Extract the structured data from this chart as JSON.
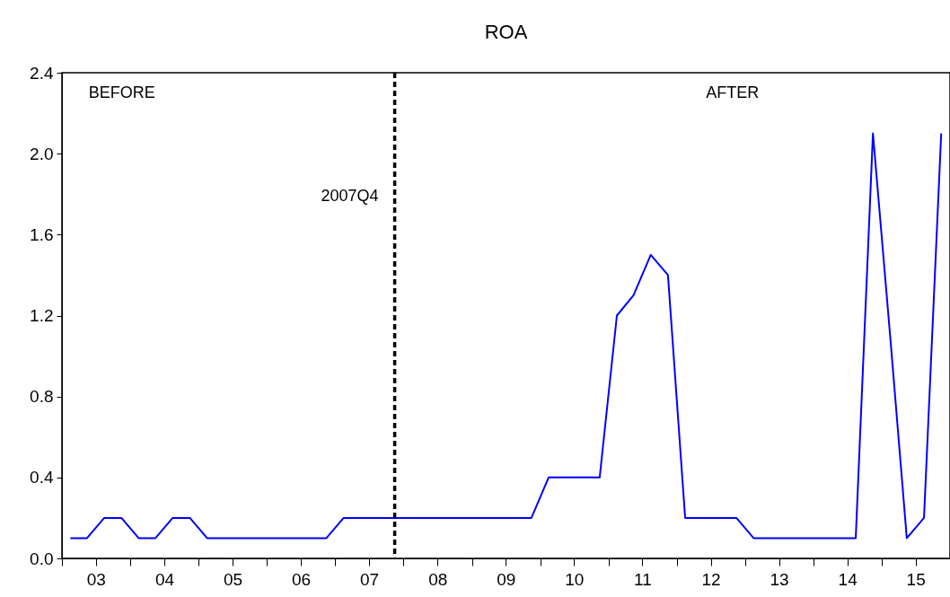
{
  "chart_data": {
    "type": "line",
    "title": "ROA",
    "x": [
      "2003-02-15",
      "2003-05-15",
      "2003-08-15",
      "2003-11-15",
      "2004-02-15",
      "2004-05-15",
      "2004-08-15",
      "2004-11-15",
      "2005-02-15",
      "2005-05-15",
      "2005-08-15",
      "2005-11-15",
      "2006-02-15",
      "2006-05-15",
      "2006-08-15",
      "2006-11-15",
      "2007-02-15",
      "2007-05-15",
      "2007-08-15",
      "2007-11-15",
      "2008-02-15",
      "2008-05-15",
      "2008-08-15",
      "2008-11-15",
      "2009-02-15",
      "2009-05-15",
      "2009-08-15",
      "2009-11-15",
      "2010-02-15",
      "2010-05-15",
      "2010-08-15",
      "2010-11-15",
      "2011-02-15",
      "2011-05-15",
      "2011-08-15",
      "2011-11-15",
      "2012-02-15",
      "2012-05-15",
      "2012-08-15",
      "2012-11-15",
      "2013-02-15",
      "2013-05-15",
      "2013-08-15",
      "2013-11-15",
      "2014-02-15",
      "2014-05-15",
      "2014-08-15",
      "2014-11-15",
      "2015-02-15",
      "2015-05-15",
      "2015-08-15",
      "2015-11-15"
    ],
    "series": [
      {
        "color": "#0000ff",
        "values": [
          0.1,
          0.1,
          0.2,
          0.2,
          0.1,
          0.1,
          0.2,
          0.2,
          0.1,
          0.1,
          0.1,
          0.1,
          0.1,
          0.1,
          0.1,
          0.1,
          0.2,
          0.2,
          0.2,
          0.2,
          0.2,
          0.2,
          0.2,
          0.2,
          0.2,
          0.2,
          0.2,
          0.2,
          0.4,
          0.4,
          0.4,
          0.4,
          1.2,
          1.3,
          1.5,
          1.4,
          0.2,
          0.2,
          0.2,
          0.2,
          0.1,
          0.1,
          0.1,
          0.1,
          0.1,
          0.1,
          0.1,
          2.1,
          1.1,
          0.1,
          0.2,
          2.1
        ]
      }
    ],
    "xlim": [
      "2003",
      "2016"
    ],
    "xticks": [
      {
        "value": "2003",
        "label": null
      },
      {
        "value": "2004",
        "label": null
      },
      {
        "value": "2005",
        "label": null
      },
      {
        "value": "2006",
        "label": null
      },
      {
        "value": "2007",
        "label": null
      },
      {
        "value": "2008",
        "label": null
      },
      {
        "value": "2009",
        "label": null
      },
      {
        "value": "2010",
        "label": null
      },
      {
        "value": "2011",
        "label": null
      },
      {
        "value": "2012",
        "label": null
      },
      {
        "value": "2013",
        "label": null
      },
      {
        "value": "2014",
        "label": null
      },
      {
        "value": "2015",
        "label": null
      },
      {
        "value": "2003-07-01",
        "label": "03"
      },
      {
        "value": "2004-07-01",
        "label": "04"
      },
      {
        "value": "2005-07-01",
        "label": "05"
      },
      {
        "value": "2006-07-01",
        "label": "06"
      },
      {
        "value": "2007-07-01",
        "label": "07"
      },
      {
        "value": "2008-07-01",
        "label": "08"
      },
      {
        "value": "2009-07-01",
        "label": "09"
      },
      {
        "value": "2010-07-01",
        "label": "10"
      },
      {
        "value": "2011-07-01",
        "label": "11"
      },
      {
        "value": "2012-07-01",
        "label": "12"
      },
      {
        "value": "2013-07-01",
        "label": "13"
      },
      {
        "value": "2014-07-01",
        "label": "14"
      },
      {
        "value": "2015-07-01",
        "label": "15"
      }
    ],
    "ylim": [
      0,
      2.4
    ],
    "yticks": [
      {
        "value": 0,
        "label": "0.0"
      },
      {
        "value": 0.4,
        "label": "0.4"
      },
      {
        "value": 0.8,
        "label": "0.8"
      },
      {
        "value": 1.2,
        "label": "1.2"
      },
      {
        "value": 1.6,
        "label": "1.6"
      },
      {
        "value": 2,
        "label": "2.0"
      },
      {
        "value": 2.4,
        "label": "2.4"
      }
    ],
    "ref_lines": [
      {
        "axis": "x",
        "value": "2007-11-15",
        "label": "2007Q4",
        "color": "#000000",
        "line_style": "dashed"
      }
    ],
    "annotations": [
      "BEFORE",
      "AFTER"
    ],
    "grid": false,
    "marker": "none",
    "line_style": "solid"
  }
}
